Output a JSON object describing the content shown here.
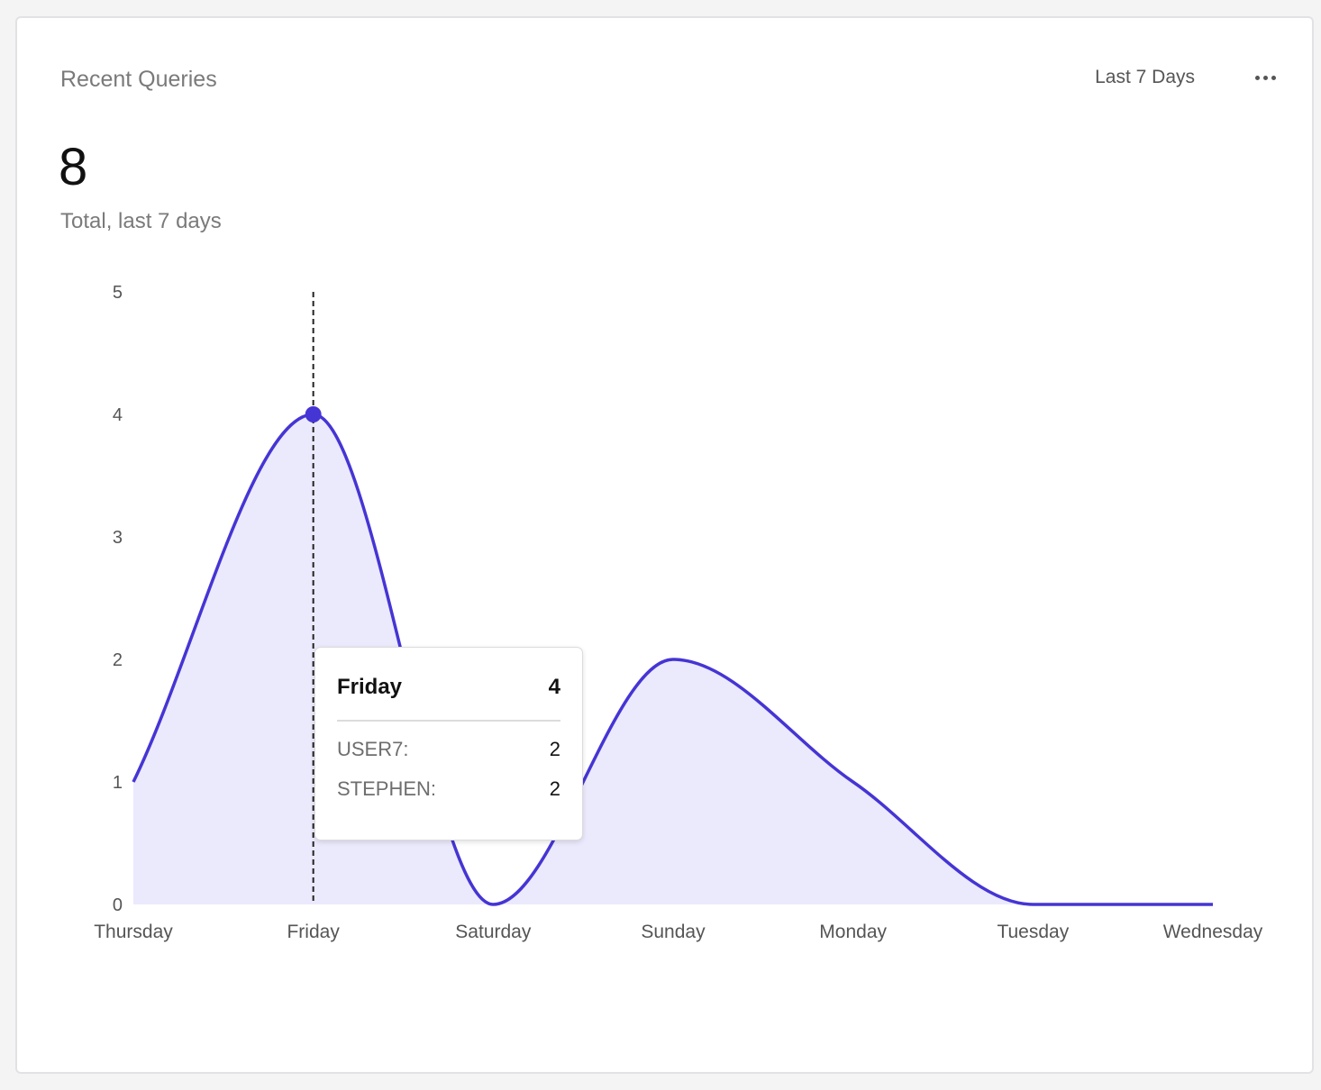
{
  "card": {
    "title": "Recent Queries",
    "range_label": "Last 7 Days",
    "more_icon": "more-horizontal-icon",
    "total_value": "8",
    "total_label": "Total, last 7 days"
  },
  "tooltip": {
    "day": "Friday",
    "total": "4",
    "rows": [
      {
        "name": "USER7:",
        "value": "2"
      },
      {
        "name": "STEPHEN:",
        "value": "2"
      }
    ]
  },
  "chart_data": {
    "type": "area",
    "categories": [
      "Thursday",
      "Friday",
      "Saturday",
      "Sunday",
      "Monday",
      "Tuesday",
      "Wednesday"
    ],
    "values": [
      1,
      4,
      0,
      2,
      1,
      0,
      0
    ],
    "ylim": [
      0,
      5
    ],
    "yticks": [
      0,
      1,
      2,
      3,
      4,
      5
    ],
    "highlight_index": 1,
    "colors": {
      "line": "#4535d4",
      "fill": "#ebe9fc",
      "point": "#4535d4",
      "guide": "#222222"
    }
  }
}
